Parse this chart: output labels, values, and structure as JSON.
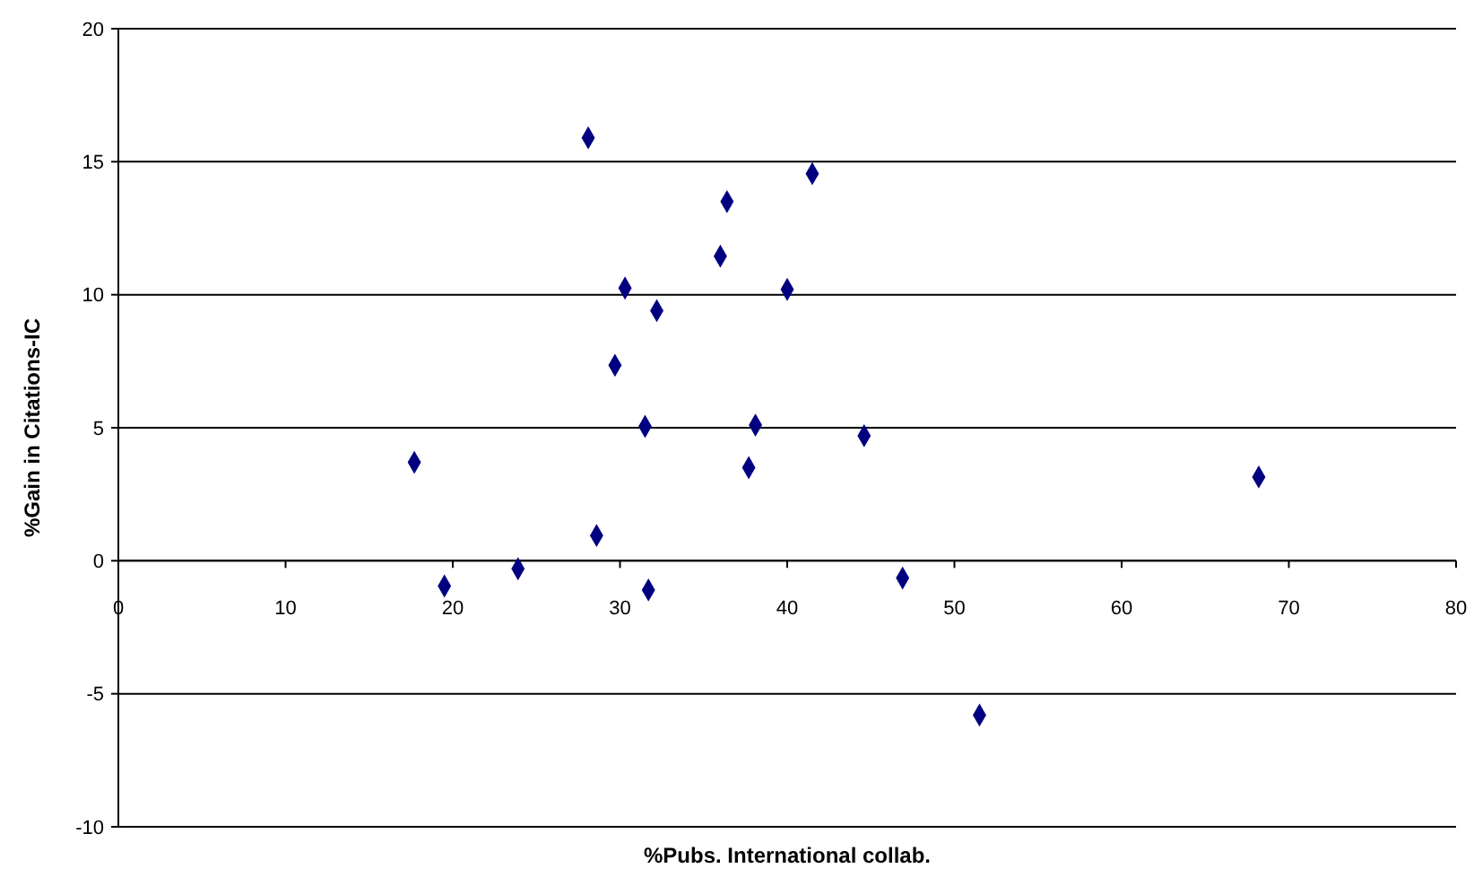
{
  "chart_data": {
    "type": "scatter",
    "xlabel": "%Pubs. International collab.",
    "ylabel": "%Gain in Citations-IC",
    "x": [
      17.7,
      19.5,
      23.9,
      28.1,
      28.6,
      29.7,
      30.3,
      31.7,
      31.5,
      32.2,
      36.0,
      36.4,
      37.7,
      38.1,
      40.0,
      41.5,
      44.6,
      46.9,
      51.5,
      68.2
    ],
    "series": [
      {
        "color": "#000080",
        "values": [
          3.7,
          -0.95,
          -0.3,
          15.9,
          0.95,
          7.35,
          10.25,
          -1.1,
          5.05,
          9.4,
          11.45,
          13.5,
          3.5,
          5.1,
          10.2,
          14.55,
          4.7,
          -0.65,
          -5.8,
          3.15
        ]
      }
    ],
    "marker": "diamond",
    "xlim": [
      0,
      80
    ],
    "xticks": [
      0,
      10,
      20,
      30,
      40,
      50,
      60,
      70,
      80
    ],
    "ylim": [
      -10,
      20
    ],
    "yticks": [
      -10,
      -5,
      0,
      5,
      10,
      15,
      20
    ],
    "grid": "y"
  }
}
